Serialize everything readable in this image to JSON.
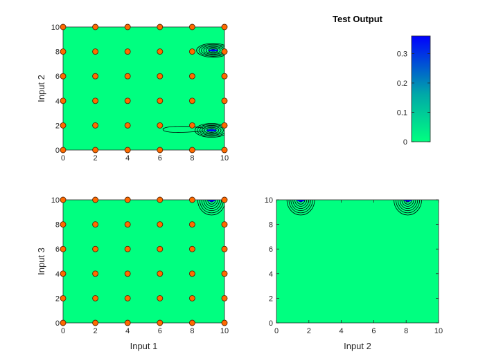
{
  "figure": {
    "title": "Test Output",
    "colors": {
      "low": "#00ff80",
      "high": "#0000ff",
      "marker_face": "#ff6a00",
      "marker_edge": "#5a2500",
      "contour": "#000000",
      "axis": "#262626"
    }
  },
  "colorbar": {
    "min": 0,
    "max": 0.36,
    "ticks": [
      0,
      0.1,
      0.2,
      0.3
    ],
    "tick_labels": [
      "0",
      "0.1",
      "0.2",
      "0.3"
    ]
  },
  "chart_data": [
    {
      "type": "contour",
      "name": "input1-input2",
      "xlabel": "",
      "ylabel": "Input 2",
      "xlim": [
        0,
        10
      ],
      "ylim": [
        0,
        10
      ],
      "xticks": [
        0,
        2,
        4,
        6,
        8,
        10
      ],
      "yticks": [
        0,
        2,
        4,
        6,
        8,
        10
      ],
      "scatter_x": [
        0,
        2,
        4,
        6,
        8,
        10
      ],
      "scatter_y": [
        0,
        2,
        4,
        6,
        8,
        10
      ],
      "peaks": [
        {
          "x": 9.2,
          "y": 1.6,
          "amplitude": 0.36
        },
        {
          "x": 9.3,
          "y": 8.1,
          "amplitude": 0.33
        }
      ]
    },
    {
      "type": "contour",
      "name": "input1-input3",
      "xlabel": "Input 1",
      "ylabel": "Input 3",
      "xlim": [
        0,
        10
      ],
      "ylim": [
        0,
        10
      ],
      "xticks": [
        0,
        2,
        4,
        6,
        8,
        10
      ],
      "yticks": [
        0,
        2,
        4,
        6,
        8,
        10
      ],
      "scatter_x": [
        0,
        2,
        4,
        6,
        8,
        10
      ],
      "scatter_y": [
        0,
        2,
        4,
        6,
        8,
        10
      ],
      "peaks": [
        {
          "x": 9.2,
          "y": 10,
          "amplitude": 0.33
        }
      ]
    },
    {
      "type": "contour",
      "name": "input2-input3",
      "xlabel": "Input 2",
      "ylabel": "",
      "xlim": [
        0,
        10
      ],
      "ylim": [
        0,
        10
      ],
      "xticks": [
        0,
        2,
        4,
        6,
        8,
        10
      ],
      "yticks": [
        0,
        2,
        4,
        6,
        8,
        10
      ],
      "scatter_x": [],
      "scatter_y": [],
      "peaks": [
        {
          "x": 1.5,
          "y": 10,
          "amplitude": 0.33
        },
        {
          "x": 8.1,
          "y": 10,
          "amplitude": 0.3
        }
      ]
    }
  ]
}
